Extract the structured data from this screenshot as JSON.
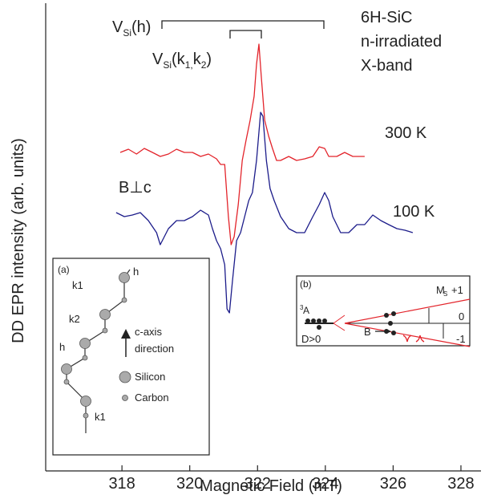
{
  "chart_data": {
    "type": "line",
    "x_label": "Magnetic Field (mT)",
    "y_label": "DD EPR intensity (arb. units)",
    "xlim": [
      315.75,
      328.45
    ],
    "xticks": [
      318,
      320,
      322,
      324,
      326,
      328
    ],
    "ylim": [
      0,
      577
    ],
    "series": [
      {
        "name": "300 K",
        "color": "#e3242b",
        "x": [
          317.95,
          318.19,
          318.43,
          318.66,
          318.9,
          319.13,
          319.37,
          319.61,
          319.84,
          320.08,
          320.32,
          320.55,
          320.79,
          320.91,
          321.03,
          321.14,
          321.22,
          321.31,
          321.43,
          321.55,
          321.66,
          321.78,
          321.9,
          321.97,
          322.04,
          322.11,
          322.21,
          322.33,
          322.44,
          322.56,
          322.68,
          322.92,
          323.15,
          323.39,
          323.63,
          323.82,
          323.98,
          324.1,
          324.34,
          324.57,
          324.81,
          325.16
        ],
        "values": [
          397,
          401,
          395,
          402,
          397,
          392,
          395,
          401,
          397,
          397,
          392,
          395,
          389,
          382,
          382,
          317,
          282,
          292,
          332,
          387,
          412,
          437,
          467,
          507,
          532,
          492,
          437,
          417,
          402,
          387,
          387,
          392,
          387,
          389,
          392,
          404,
          402,
          392,
          392,
          397,
          392,
          392
        ]
      },
      {
        "name": "100 K",
        "color": "#1c1c8a",
        "x": [
          317.83,
          318.07,
          318.31,
          318.54,
          318.78,
          319.02,
          319.13,
          319.25,
          319.37,
          319.61,
          319.84,
          320.08,
          320.32,
          320.55,
          320.67,
          320.79,
          320.91,
          321.03,
          321.1,
          321.17,
          321.26,
          321.38,
          321.5,
          321.62,
          321.74,
          321.85,
          321.97,
          322.09,
          322.16,
          322.26,
          322.37,
          322.49,
          322.68,
          322.92,
          323.15,
          323.39,
          323.63,
          323.82,
          323.98,
          324.1,
          324.22,
          324.45,
          324.69,
          324.93,
          325.16,
          325.4,
          325.64,
          325.87,
          326.11,
          326.35,
          326.58
        ],
        "values": [
          322,
          317,
          319,
          322,
          312,
          297,
          282,
          292,
          302,
          312,
          312,
          317,
          325,
          319,
          302,
          287,
          277,
          257,
          202,
          197,
          237,
          287,
          297,
          317,
          337,
          347,
          387,
          447,
          442,
          387,
          352,
          337,
          317,
          302,
          297,
          297,
          317,
          332,
          347,
          337,
          317,
          297,
          297,
          307,
          307,
          319,
          312,
          307,
          302,
          300,
          297
        ]
      }
    ],
    "sample": [
      "6H-SiC",
      "n-irradiated",
      "X-band"
    ],
    "orientation": "B⊥c",
    "site_h": [
      {
        "text": "V"
      },
      {
        "text": "Si",
        "sub": true
      },
      {
        "text": "(h)"
      }
    ],
    "site_k": [
      {
        "text": "V"
      },
      {
        "text": "Si",
        "sub": true
      },
      {
        "text": "(k"
      },
      {
        "text": "1,",
        "sub": true
      },
      {
        "text": "k"
      },
      {
        "text": "2",
        "sub": true
      },
      {
        "text": ")"
      }
    ],
    "inset_a": [
      "(a)",
      "h",
      "k1",
      "k2",
      "h",
      "k1",
      "c-axis",
      "direction",
      "Silicon",
      "Carbon"
    ],
    "inset_b": [
      "(b)",
      "3",
      "A",
      "M",
      "S",
      "+1",
      "0",
      "-1",
      "D>0",
      "B"
    ]
  }
}
